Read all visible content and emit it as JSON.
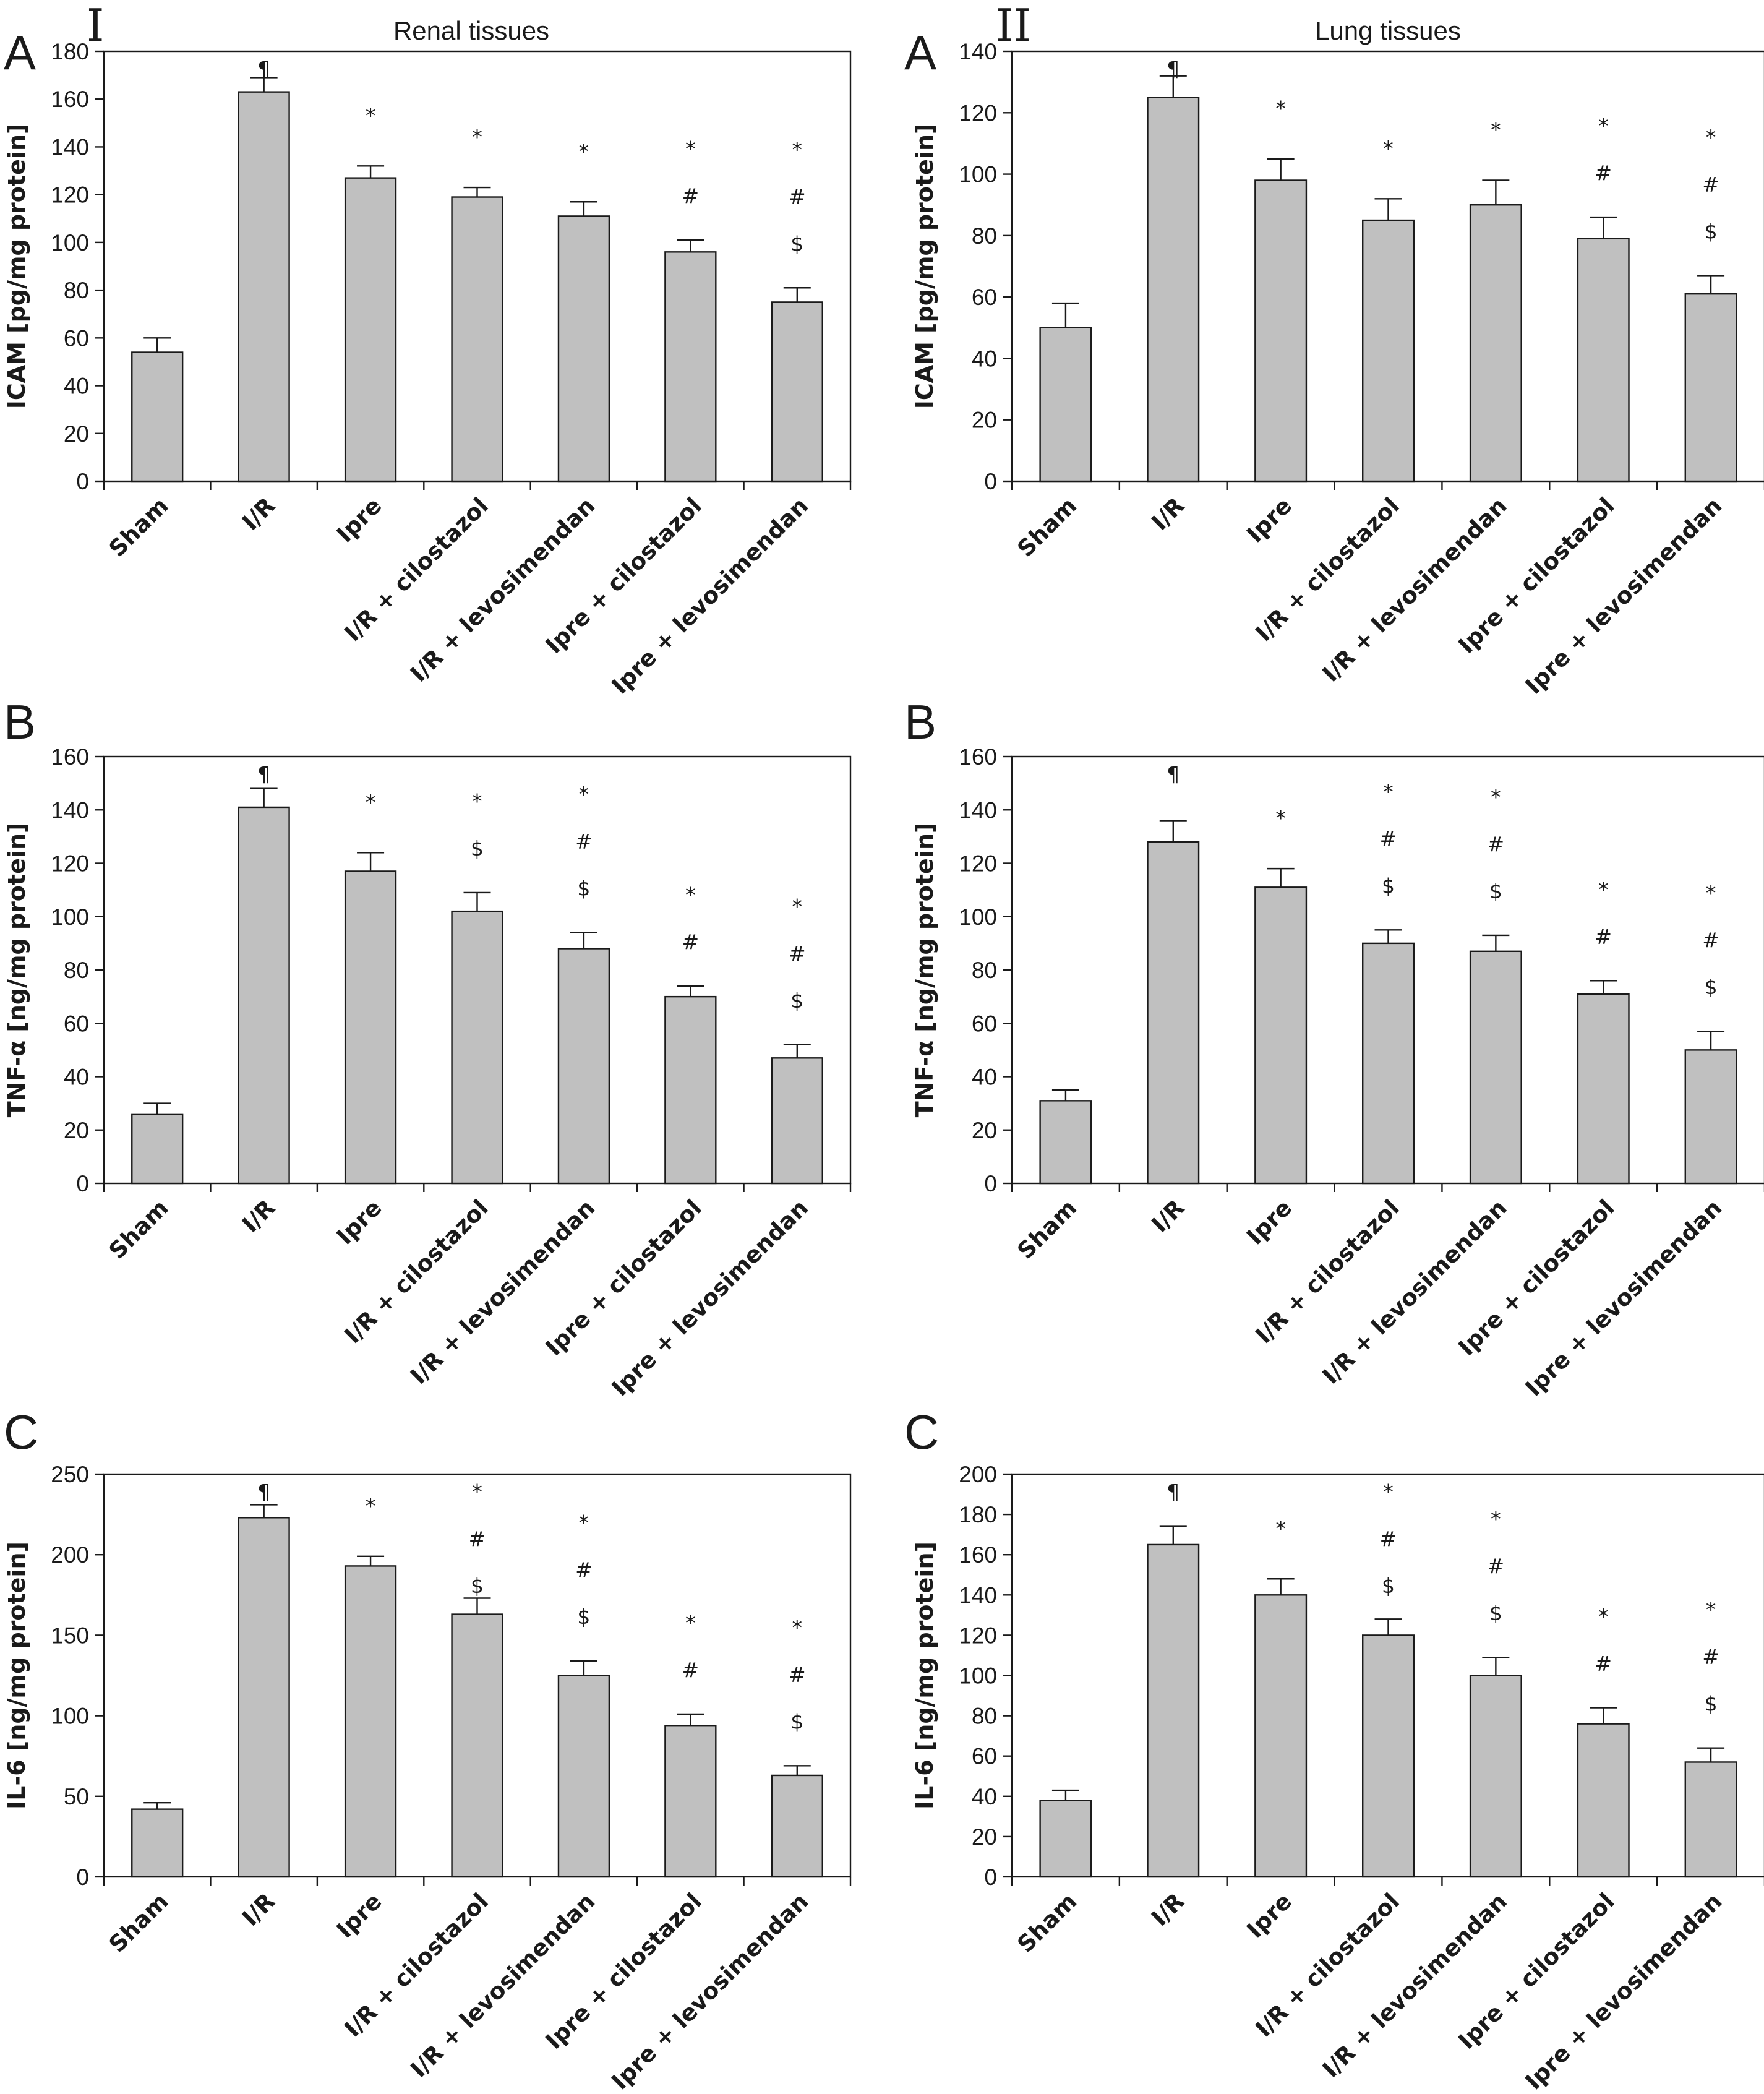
{
  "chart_data": [
    {
      "type": "bar",
      "panel_letter": "A",
      "column_label": "I",
      "subtitle": "Renal tissues",
      "ylabel": "ICAM [pg/mg protein]",
      "categories": [
        "Sham",
        "I/R",
        "Ipre",
        "I/R + cilostazol",
        "I/R + levosimendan",
        "Ipre + cilostazol",
        "Ipre + levosimendan"
      ],
      "values": [
        54,
        163,
        127,
        119,
        111,
        96,
        75
      ],
      "errors": [
        6,
        6,
        5,
        4,
        6,
        5,
        6
      ],
      "significance": [
        [],
        [
          "¶"
        ],
        [
          "*"
        ],
        [
          "*"
        ],
        [
          "*"
        ],
        [
          "*",
          "#"
        ],
        [
          "*",
          "#",
          "$"
        ]
      ],
      "ylim": [
        0,
        180
      ],
      "yticks": [
        0,
        20,
        40,
        60,
        80,
        100,
        120,
        140,
        160,
        180
      ],
      "bar_color": "#c0c0c0"
    },
    {
      "type": "bar",
      "panel_letter": "A",
      "column_label": "II",
      "subtitle": "Lung tissues",
      "ylabel": "ICAM [pg/mg protein]",
      "categories": [
        "Sham",
        "I/R",
        "Ipre",
        "I/R + cilostazol",
        "I/R + levosimendan",
        "Ipre + cilostazol",
        "Ipre + levosimendan"
      ],
      "values": [
        50,
        125,
        98,
        85,
        90,
        79,
        61
      ],
      "errors": [
        8,
        7,
        7,
        7,
        8,
        7,
        6
      ],
      "significance": [
        [],
        [
          "¶"
        ],
        [
          "*"
        ],
        [
          "*"
        ],
        [
          "*"
        ],
        [
          "*",
          "#"
        ],
        [
          "*",
          "#",
          "$"
        ]
      ],
      "ylim": [
        0,
        140
      ],
      "yticks": [
        0,
        20,
        40,
        60,
        80,
        100,
        120,
        140
      ],
      "bar_color": "#c0c0c0"
    },
    {
      "type": "bar",
      "panel_letter": "B",
      "column_label": "",
      "subtitle": "",
      "ylabel": "TNF-α [ng/mg protein]",
      "categories": [
        "Sham",
        "I/R",
        "Ipre",
        "I/R + cilostazol",
        "I/R + levosimendan",
        "Ipre + cilostazol",
        "Ipre + levosimendan"
      ],
      "values": [
        26,
        141,
        117,
        102,
        88,
        70,
        47
      ],
      "errors": [
        4,
        7,
        7,
        7,
        6,
        4,
        5
      ],
      "significance": [
        [],
        [
          "¶"
        ],
        [
          "*"
        ],
        [
          "*",
          "$"
        ],
        [
          "*",
          "#",
          "$"
        ],
        [
          "*",
          "#"
        ],
        [
          "*",
          "#",
          "$"
        ]
      ],
      "ylim": [
        0,
        160
      ],
      "yticks": [
        0,
        20,
        40,
        60,
        80,
        100,
        120,
        140,
        160
      ],
      "bar_color": "#c0c0c0"
    },
    {
      "type": "bar",
      "panel_letter": "B",
      "column_label": "",
      "subtitle": "",
      "ylabel": "TNF-α [ng/mg protein]",
      "categories": [
        "Sham",
        "I/R",
        "Ipre",
        "I/R + cilostazol",
        "I/R + levosimendan",
        "Ipre + cilostazol",
        "Ipre + levosimendan"
      ],
      "values": [
        31,
        128,
        111,
        90,
        87,
        71,
        50
      ],
      "errors": [
        4,
        8,
        7,
        5,
        6,
        5,
        7
      ],
      "significance": [
        [],
        [
          "¶"
        ],
        [
          "*"
        ],
        [
          "*",
          "#",
          "$"
        ],
        [
          "*",
          "#",
          "$"
        ],
        [
          "*",
          "#"
        ],
        [
          "*",
          "#",
          "$"
        ]
      ],
      "ylim": [
        0,
        160
      ],
      "yticks": [
        0,
        20,
        40,
        60,
        80,
        100,
        120,
        140,
        160
      ],
      "bar_color": "#c0c0c0"
    },
    {
      "type": "bar",
      "panel_letter": "C",
      "column_label": "",
      "subtitle": "",
      "ylabel": "IL-6 [ng/mg protein]",
      "categories": [
        "Sham",
        "I/R",
        "Ipre",
        "I/R + cilostazol",
        "I/R + levosimendan",
        "Ipre + cilostazol",
        "Ipre + levosimendan"
      ],
      "values": [
        42,
        223,
        193,
        163,
        125,
        94,
        63
      ],
      "errors": [
        4,
        8,
        6,
        10,
        9,
        7,
        6
      ],
      "significance": [
        [],
        [
          "¶"
        ],
        [
          "*"
        ],
        [
          "*",
          "#",
          "$"
        ],
        [
          "*",
          "#",
          "$"
        ],
        [
          "*",
          "#"
        ],
        [
          "*",
          "#",
          "$"
        ]
      ],
      "ylim": [
        0,
        250
      ],
      "yticks": [
        0,
        50,
        100,
        150,
        200,
        250
      ],
      "bar_color": "#c0c0c0"
    },
    {
      "type": "bar",
      "panel_letter": "C",
      "column_label": "",
      "subtitle": "",
      "ylabel": "IL-6 [ng/mg protein]",
      "categories": [
        "Sham",
        "I/R",
        "Ipre",
        "I/R + cilostazol",
        "I/R + levosimendan",
        "Ipre + cilostazol",
        "Ipre + levosimendan"
      ],
      "values": [
        38,
        165,
        140,
        120,
        100,
        76,
        57
      ],
      "errors": [
        5,
        9,
        8,
        8,
        9,
        8,
        7
      ],
      "significance": [
        [],
        [
          "¶"
        ],
        [
          "*"
        ],
        [
          "*",
          "#",
          "$"
        ],
        [
          "*",
          "#",
          "$"
        ],
        [
          "*",
          "#"
        ],
        [
          "*",
          "#",
          "$"
        ]
      ],
      "ylim": [
        0,
        200
      ],
      "yticks": [
        0,
        20,
        40,
        60,
        80,
        100,
        120,
        140,
        160,
        180,
        200
      ],
      "bar_color": "#c0c0c0"
    }
  ]
}
